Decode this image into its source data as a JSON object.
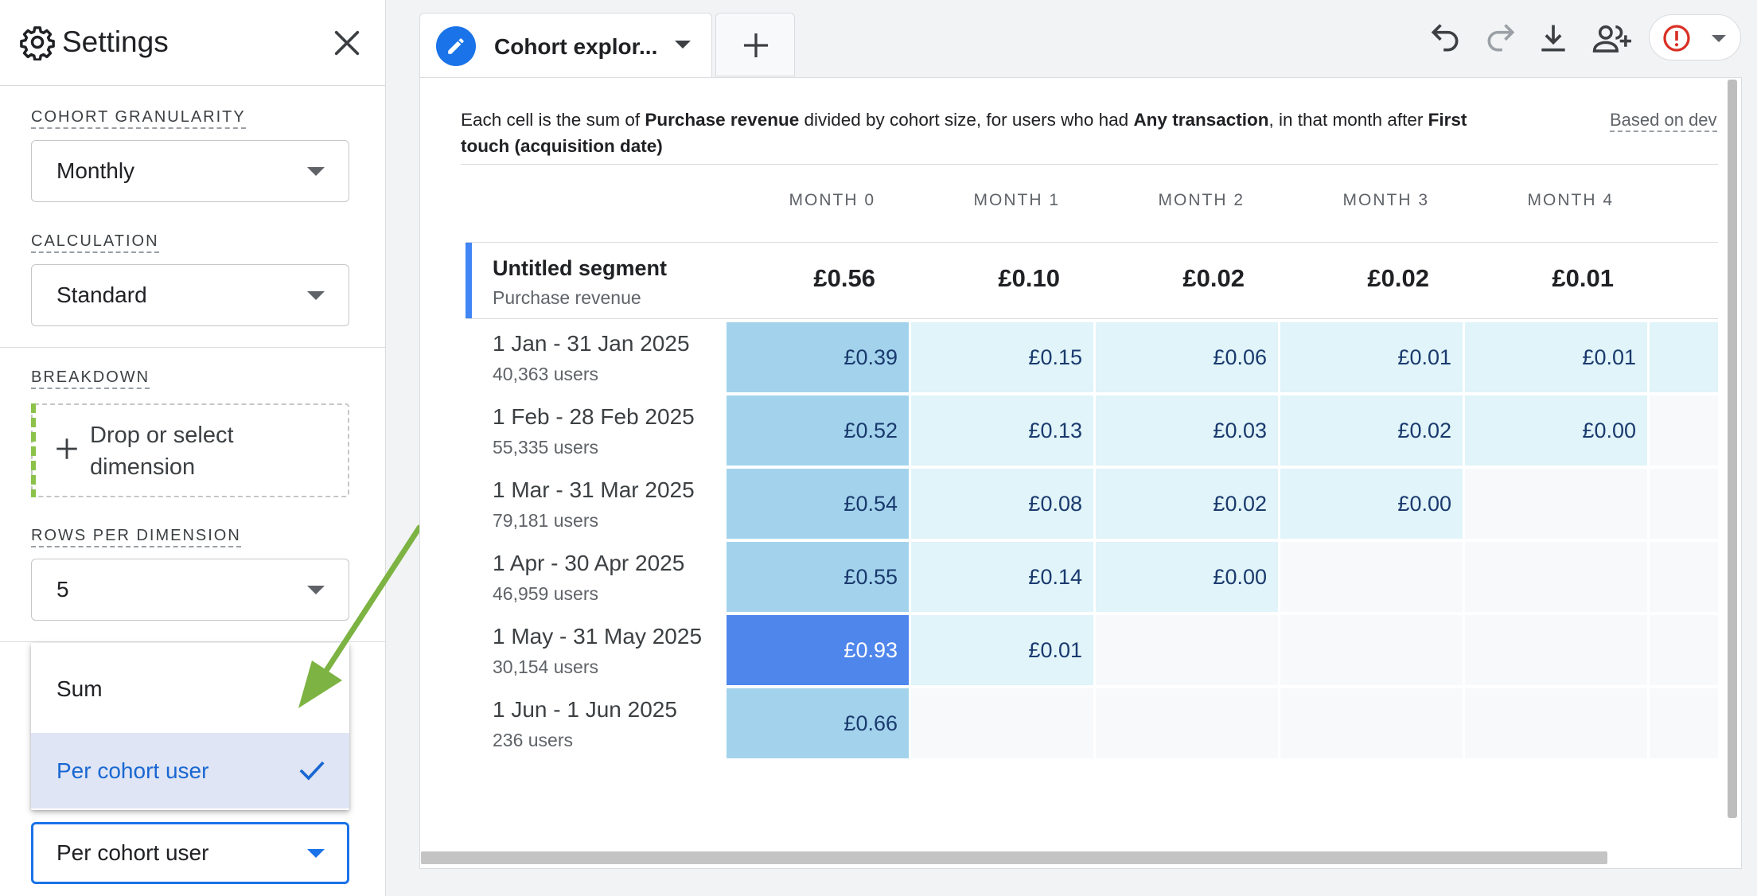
{
  "settings": {
    "title": "Settings",
    "granularity_label": "COHORT GRANULARITY",
    "granularity_value": "Monthly",
    "calculation_label": "CALCULATION",
    "calculation_value": "Standard",
    "breakdown_label": "BREAKDOWN",
    "breakdown_placeholder_line1": "Drop or select",
    "breakdown_placeholder_line2": "dimension",
    "rows_label": "ROWS PER DIMENSION",
    "rows_value": "5",
    "metric_menu": {
      "options": [
        "Sum",
        "Per cohort user"
      ],
      "selected": "Per cohort user"
    },
    "metric_value": "Per cohort user"
  },
  "tab": {
    "name": "Cohort explor..."
  },
  "toolbar": {
    "icons": [
      "undo-icon",
      "redo-icon",
      "download-icon",
      "share-icon",
      "alert-icon"
    ]
  },
  "description": {
    "p1": "Each cell is the sum of ",
    "b1": "Purchase revenue",
    "p2": " divided by cohort size, for users who had ",
    "b2": "Any transaction",
    "p3": ", in that month after ",
    "b3": "First",
    "line2_bold": "touch (acquisition date)",
    "based_on": "Based on dev"
  },
  "table": {
    "months": [
      "MONTH 0",
      "MONTH 1",
      "MONTH 2",
      "MONTH 3",
      "MONTH 4"
    ],
    "segment_name": "Untitled segment",
    "segment_metric": "Purchase revenue",
    "totals": [
      "£0.56",
      "£0.10",
      "£0.02",
      "£0.02",
      "£0.01"
    ],
    "rows": [
      {
        "label": "1 Jan - 31 Jan 2025",
        "users": "40,363 users",
        "values": [
          "£0.39",
          "£0.15",
          "£0.06",
          "£0.01",
          "£0.01"
        ]
      },
      {
        "label": "1 Feb - 28 Feb 2025",
        "users": "55,335 users",
        "values": [
          "£0.52",
          "£0.13",
          "£0.03",
          "£0.02",
          "£0.00"
        ]
      },
      {
        "label": "1 Mar - 31 Mar 2025",
        "users": "79,181 users",
        "values": [
          "£0.54",
          "£0.08",
          "£0.02",
          "£0.00"
        ]
      },
      {
        "label": "1 Apr - 30 Apr 2025",
        "users": "46,959 users",
        "values": [
          "£0.55",
          "£0.14",
          "£0.00"
        ]
      },
      {
        "label": "1 May - 31 May 2025",
        "users": "30,154 users",
        "values": [
          "£0.93",
          "£0.01"
        ]
      },
      {
        "label": "1 Jun - 1 Jun 2025",
        "users": "236 users",
        "values": [
          "£0.66"
        ]
      }
    ]
  },
  "colors": {
    "heat_dark": "#4f86ec",
    "heat_mid": "#a3d3ec",
    "heat_light": "#e0f4f9",
    "empty": "#f8f9fa",
    "accent": "#1a73e8",
    "annotation_arrow": "#7cb342"
  }
}
